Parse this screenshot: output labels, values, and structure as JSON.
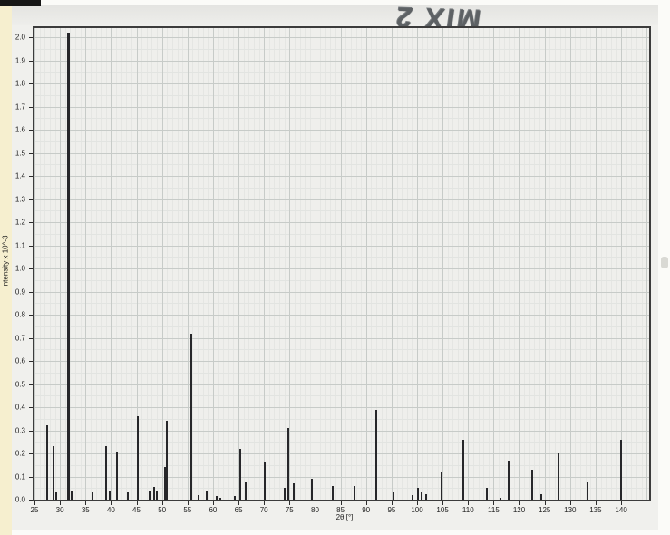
{
  "scan": {
    "handwriting_note": "MIX 2",
    "edge_color": "#f6efcf",
    "paper_color": "#f0f0ed",
    "peak_color": "#27272a"
  },
  "chart_data": {
    "type": "bar",
    "subtype": "xrd-stick-pattern",
    "title": "",
    "xlabel": "2θ [°]",
    "ylabel": "Intensity x 10^-3",
    "xlim": [
      25,
      145.5
    ],
    "ylim": [
      0,
      2.04
    ],
    "grid": true,
    "x_ticks": [
      25,
      30,
      35,
      40,
      45,
      50,
      55,
      60,
      65,
      70,
      75,
      80,
      85,
      90,
      95,
      100,
      105,
      110,
      115,
      120,
      125,
      130,
      135,
      140
    ],
    "y_ticks": [
      0.0,
      0.1,
      0.2,
      0.3,
      0.4,
      0.5,
      0.6,
      0.7,
      0.8,
      0.9,
      1.0,
      1.1,
      1.2,
      1.3,
      1.4,
      1.5,
      1.6,
      1.7,
      1.8,
      1.9,
      2.0
    ],
    "peaks": [
      {
        "two_theta": 27.4,
        "intensity": 0.32
      },
      {
        "two_theta": 28.7,
        "intensity": 0.23
      },
      {
        "two_theta": 29.3,
        "intensity": 0.03
      },
      {
        "two_theta": 31.6,
        "intensity": 2.02
      },
      {
        "two_theta": 32.3,
        "intensity": 0.04
      },
      {
        "two_theta": 36.3,
        "intensity": 0.03
      },
      {
        "two_theta": 39.0,
        "intensity": 0.23
      },
      {
        "two_theta": 39.7,
        "intensity": 0.04
      },
      {
        "two_theta": 41.1,
        "intensity": 0.21
      },
      {
        "two_theta": 43.3,
        "intensity": 0.03
      },
      {
        "two_theta": 45.2,
        "intensity": 0.36
      },
      {
        "two_theta": 47.5,
        "intensity": 0.035
      },
      {
        "two_theta": 48.4,
        "intensity": 0.055
      },
      {
        "two_theta": 48.9,
        "intensity": 0.04
      },
      {
        "two_theta": 50.6,
        "intensity": 0.14
      },
      {
        "two_theta": 51.0,
        "intensity": 0.34
      },
      {
        "two_theta": 55.8,
        "intensity": 0.72
      },
      {
        "two_theta": 57.2,
        "intensity": 0.02
      },
      {
        "two_theta": 58.8,
        "intensity": 0.035
      },
      {
        "two_theta": 60.7,
        "intensity": 0.015
      },
      {
        "two_theta": 61.4,
        "intensity": 0.01
      },
      {
        "two_theta": 64.3,
        "intensity": 0.015
      },
      {
        "two_theta": 65.4,
        "intensity": 0.22
      },
      {
        "two_theta": 66.4,
        "intensity": 0.08
      },
      {
        "two_theta": 70.2,
        "intensity": 0.16
      },
      {
        "two_theta": 74.0,
        "intensity": 0.05
      },
      {
        "two_theta": 74.8,
        "intensity": 0.31
      },
      {
        "two_theta": 75.8,
        "intensity": 0.07
      },
      {
        "two_theta": 79.3,
        "intensity": 0.09
      },
      {
        "two_theta": 83.4,
        "intensity": 0.06
      },
      {
        "two_theta": 87.7,
        "intensity": 0.06
      },
      {
        "two_theta": 92.0,
        "intensity": 0.39
      },
      {
        "two_theta": 95.4,
        "intensity": 0.03
      },
      {
        "two_theta": 99.1,
        "intensity": 0.02
      },
      {
        "two_theta": 100.1,
        "intensity": 0.05
      },
      {
        "two_theta": 100.9,
        "intensity": 0.03
      },
      {
        "two_theta": 101.8,
        "intensity": 0.025
      },
      {
        "two_theta": 104.8,
        "intensity": 0.12
      },
      {
        "two_theta": 109.0,
        "intensity": 0.26
      },
      {
        "two_theta": 113.6,
        "intensity": 0.05
      },
      {
        "two_theta": 116.3,
        "intensity": 0.01
      },
      {
        "two_theta": 118.0,
        "intensity": 0.17
      },
      {
        "two_theta": 122.6,
        "intensity": 0.13
      },
      {
        "two_theta": 124.4,
        "intensity": 0.025
      },
      {
        "two_theta": 127.8,
        "intensity": 0.2
      },
      {
        "two_theta": 133.4,
        "intensity": 0.08
      },
      {
        "two_theta": 140.0,
        "intensity": 0.26
      }
    ]
  }
}
